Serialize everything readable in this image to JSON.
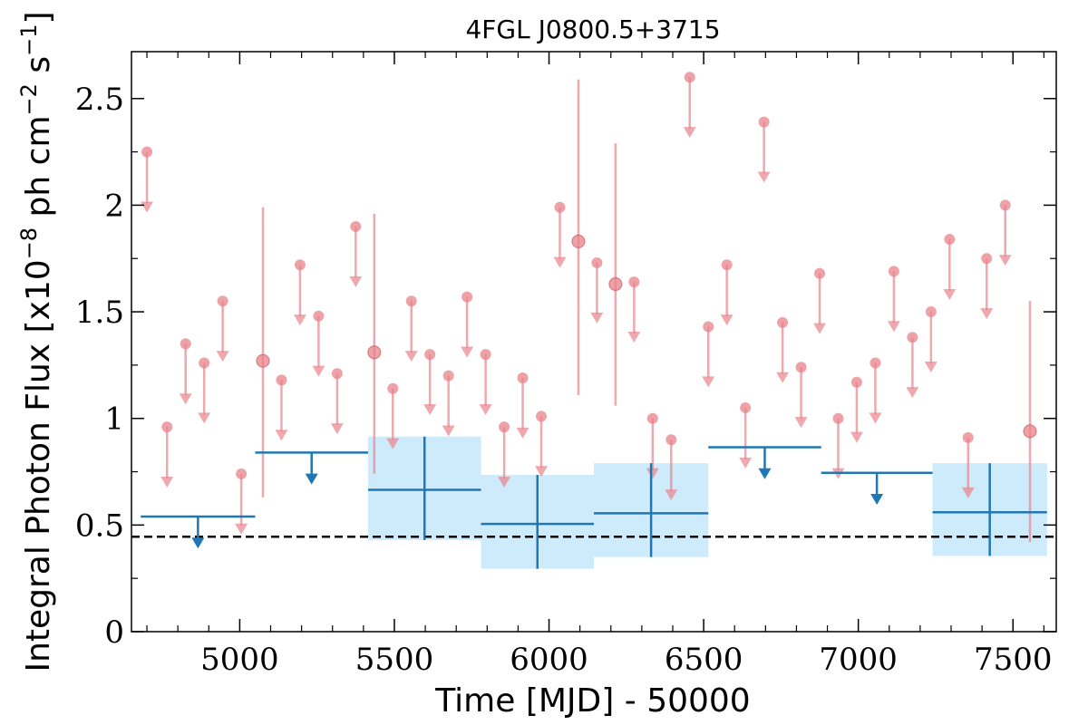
{
  "chart_data": {
    "type": "scatter",
    "title": "4FGL J0800.5+3715",
    "xlabel": "Time [MJD] - 50000",
    "ylabel": "Integral Photon Flux [x10",
    "ylabel_sup1": "−8",
    "ylabel_mid": " ph cm",
    "ylabel_sup2": "−2",
    "ylabel_mid2": " s",
    "ylabel_sup3": "−1",
    "ylabel_end": "]",
    "xlim": [
      4650,
      7640
    ],
    "ylim": [
      0,
      2.72
    ],
    "x_ticks": [
      5000,
      5500,
      6000,
      6500,
      7000,
      7500
    ],
    "x_tick_labels": [
      "5000",
      "5500",
      "6000",
      "6500",
      "7000",
      "7500"
    ],
    "y_ticks": [
      0,
      0.5,
      1,
      1.5,
      2,
      2.5
    ],
    "y_tick_labels": [
      "0",
      "0.5",
      "1",
      "1.5",
      "2",
      "2.5"
    ],
    "grid": false,
    "colors": {
      "short_bin": "#e8838a",
      "long_bin": "#1f77b4",
      "band": "#cdebfb",
      "mean_line": "#000000"
    },
    "mean_flux": 0.445,
    "short_bins": {
      "name": "",
      "upper_limits": [
        [
          4700,
          2.25
        ],
        [
          4765,
          0.96
        ],
        [
          4825,
          1.35
        ],
        [
          4885,
          1.26
        ],
        [
          4945,
          1.55
        ],
        [
          5005,
          0.74
        ],
        [
          5135,
          1.18
        ],
        [
          5195,
          1.72
        ],
        [
          5255,
          1.48
        ],
        [
          5315,
          1.21
        ],
        [
          5375,
          1.9
        ],
        [
          5495,
          1.14
        ],
        [
          5555,
          1.55
        ],
        [
          5615,
          1.3
        ],
        [
          5675,
          1.2
        ],
        [
          5735,
          1.57
        ],
        [
          5795,
          1.3
        ],
        [
          5855,
          0.96
        ],
        [
          5915,
          1.19
        ],
        [
          5975,
          1.01
        ],
        [
          6035,
          1.99
        ],
        [
          6155,
          1.73
        ],
        [
          6275,
          1.64
        ],
        [
          6335,
          1.0
        ],
        [
          6395,
          0.9
        ],
        [
          6455,
          2.6
        ],
        [
          6515,
          1.43
        ],
        [
          6575,
          1.72
        ],
        [
          6635,
          1.05
        ],
        [
          6695,
          2.39
        ],
        [
          6755,
          1.45
        ],
        [
          6815,
          1.24
        ],
        [
          6875,
          1.68
        ],
        [
          6935,
          1.0
        ],
        [
          6995,
          1.17
        ],
        [
          7055,
          1.26
        ],
        [
          7115,
          1.69
        ],
        [
          7175,
          1.38
        ],
        [
          7235,
          1.5
        ],
        [
          7295,
          1.84
        ],
        [
          7355,
          0.91
        ],
        [
          7415,
          1.75
        ],
        [
          7475,
          2.0
        ]
      ],
      "detections": [
        {
          "x": 5075,
          "y": 1.27,
          "yerr_low": 0.63,
          "yerr_high": 1.99
        },
        {
          "x": 5435,
          "y": 1.31,
          "yerr_low": 0.74,
          "yerr_high": 1.96
        },
        {
          "x": 6095,
          "y": 1.83,
          "yerr_low": 1.11,
          "yerr_high": 2.59
        },
        {
          "x": 6215,
          "y": 1.63,
          "yerr_low": 1.06,
          "yerr_high": 2.29
        },
        {
          "x": 7555,
          "y": 0.94,
          "yerr_low": 0.42,
          "yerr_high": 1.55
        }
      ]
    },
    "long_bins": {
      "name": "",
      "upper_limits": [
        {
          "x0": 4680,
          "x1": 5050,
          "y": 0.54
        },
        {
          "x0": 5050,
          "x1": 5415,
          "y": 0.84
        },
        {
          "x0": 6515,
          "x1": 6880,
          "y": 0.865
        },
        {
          "x0": 6880,
          "x1": 7240,
          "y": 0.745
        }
      ],
      "detections": [
        {
          "x0": 5415,
          "x1": 5780,
          "y": 0.665,
          "ylow": 0.43,
          "yhigh": 0.915
        },
        {
          "x0": 5780,
          "x1": 6145,
          "y": 0.505,
          "ylow": 0.295,
          "yhigh": 0.735
        },
        {
          "x0": 6145,
          "x1": 6515,
          "y": 0.555,
          "ylow": 0.35,
          "yhigh": 0.79
        },
        {
          "x0": 7240,
          "x1": 7610,
          "y": 0.56,
          "ylow": 0.355,
          "yhigh": 0.79
        }
      ]
    }
  }
}
